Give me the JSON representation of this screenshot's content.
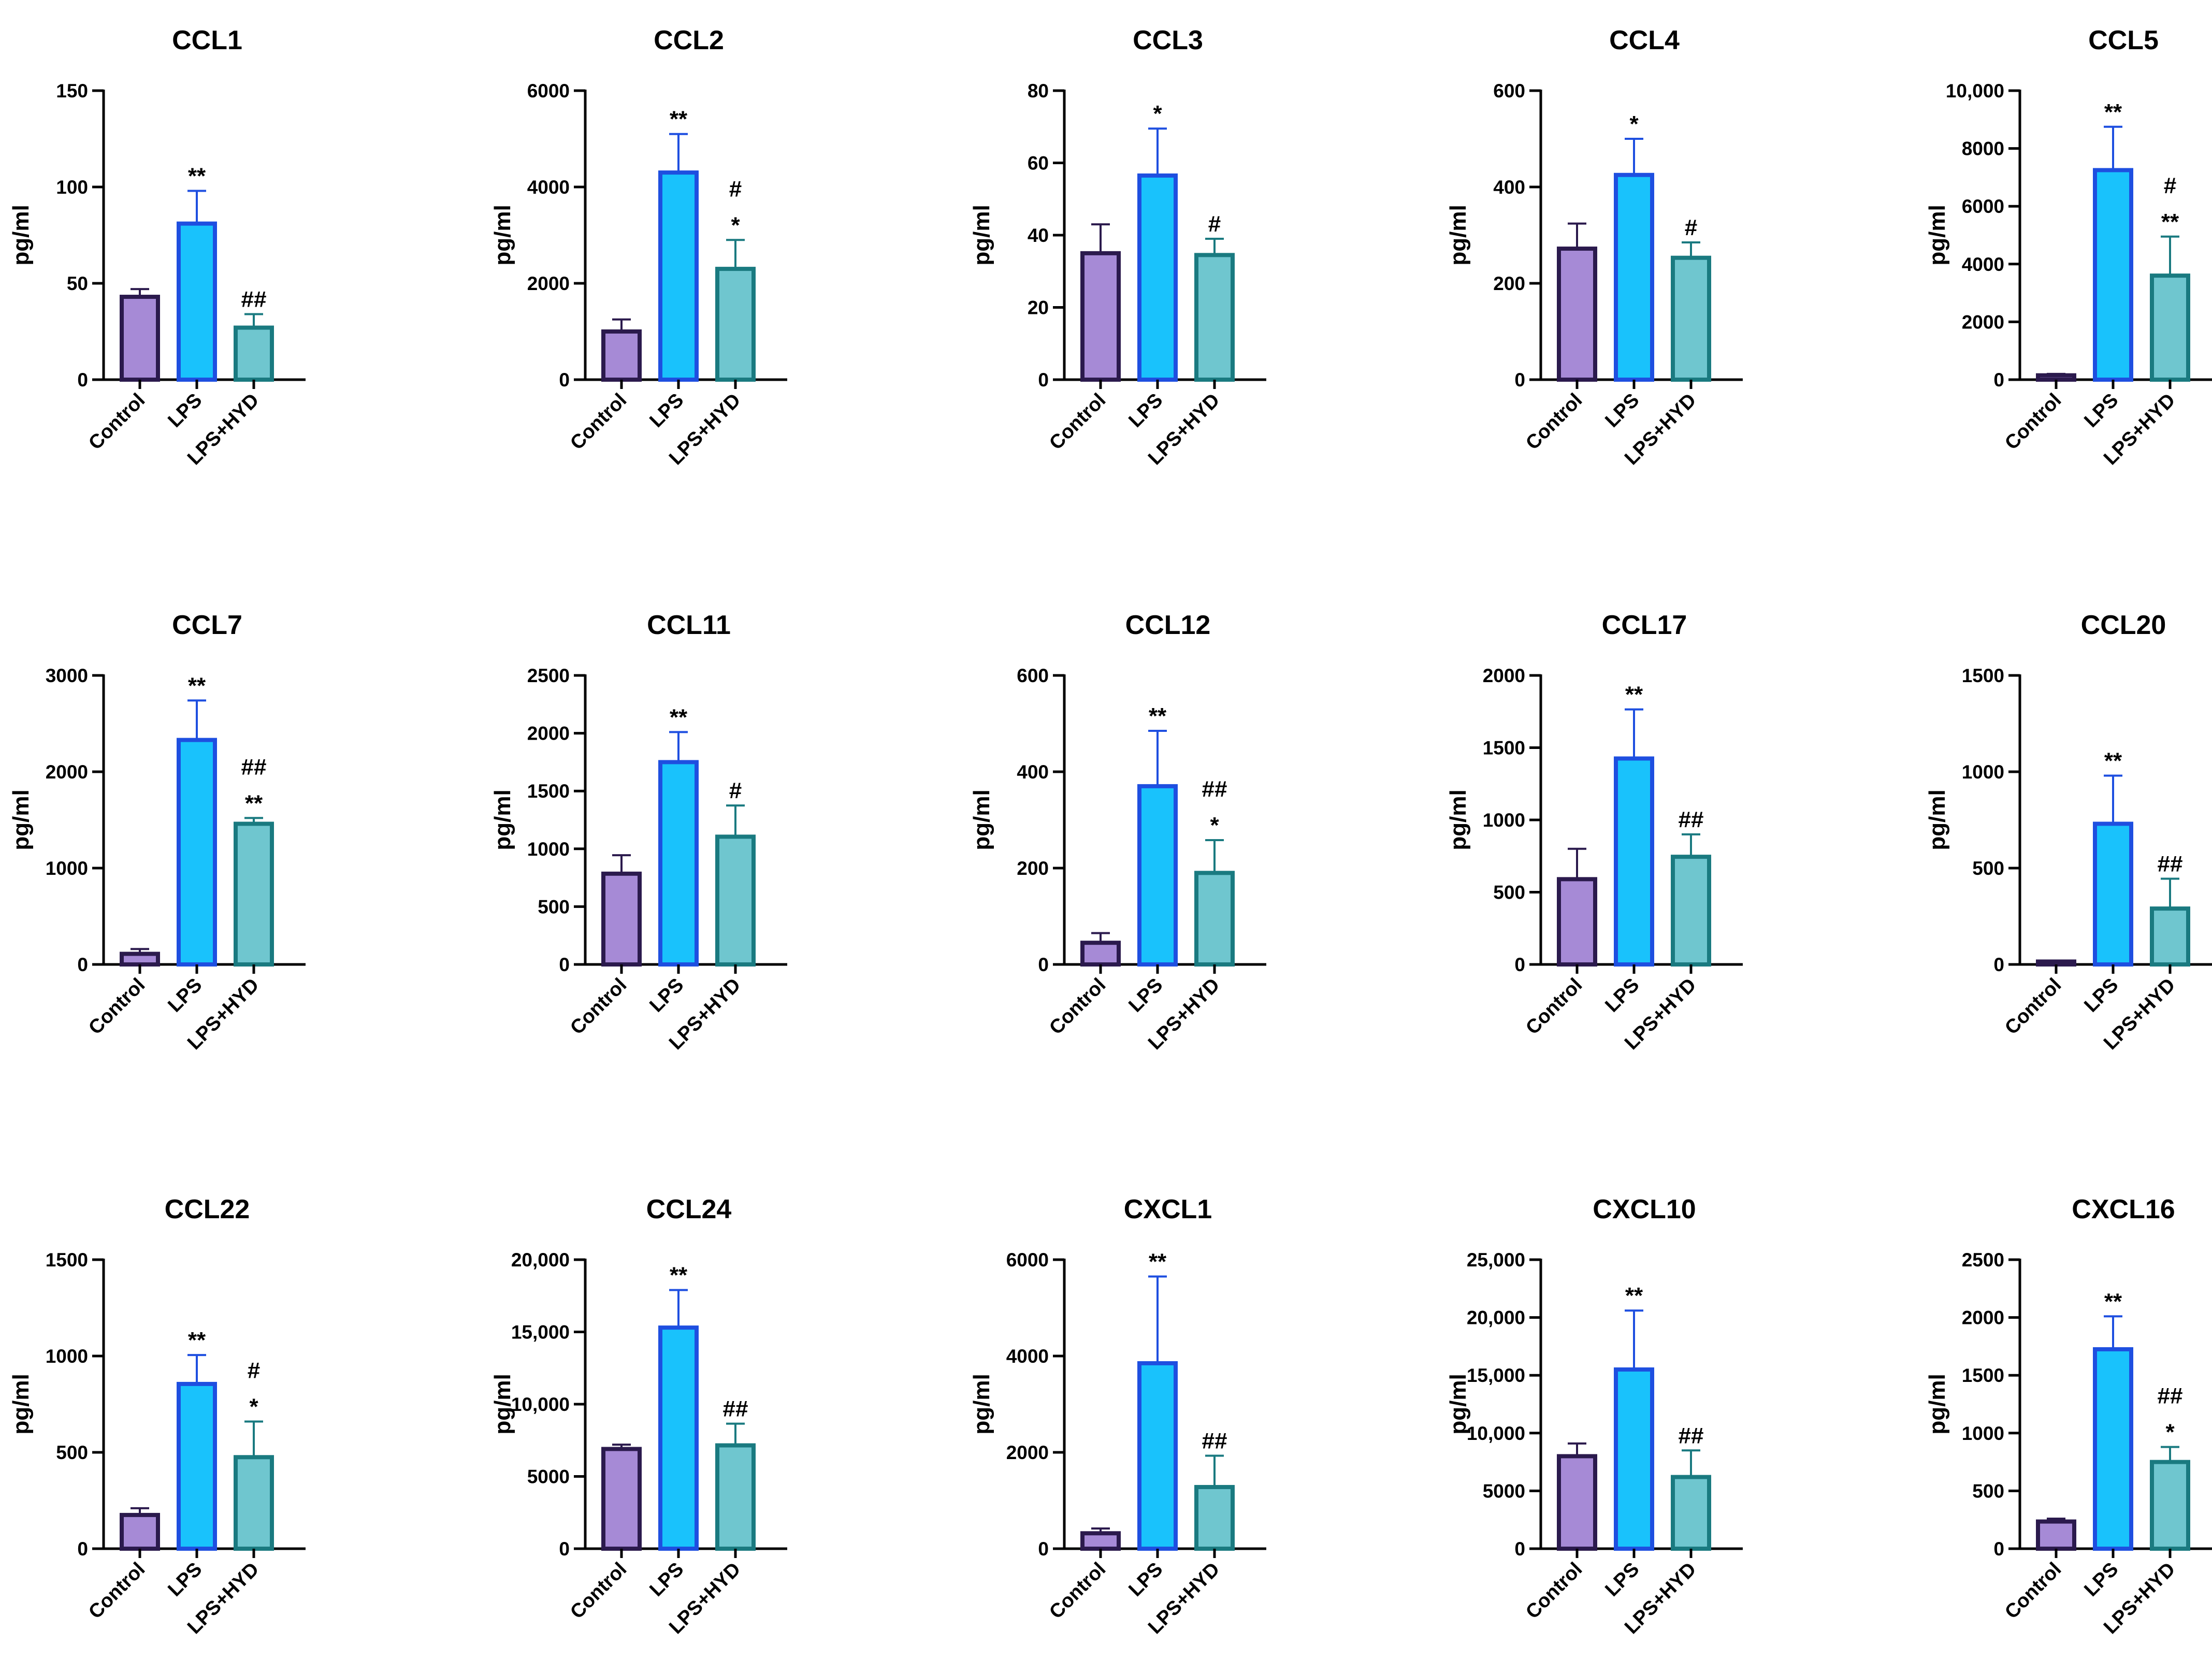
{
  "colors": {
    "Control": {
      "fill": "#a68ad6",
      "stroke": "#2b1a4d",
      "err": "#2b1a4d"
    },
    "LPS": {
      "fill": "#19c2fc",
      "stroke": "#1e4fe0",
      "err": "#1e4fe0"
    },
    "LPS+HYD": {
      "fill": "#6fc6cf",
      "stroke": "#1a7a80",
      "err": "#1a7a80"
    }
  },
  "chart_data": [
    {
      "type": "bar",
      "title": "CCL1",
      "ylabel": "pg/ml",
      "categories": [
        "Control",
        "LPS",
        "LPS+HYD"
      ],
      "values": [
        43,
        81,
        27
      ],
      "errors": [
        4,
        17,
        7
      ],
      "ylim": [
        0,
        150
      ],
      "yticks": [
        0,
        50,
        100,
        150
      ],
      "ytick_labels": [
        "0",
        "50",
        "100",
        "150"
      ],
      "annotations": [
        [],
        [
          "**"
        ],
        [
          "##"
        ]
      ]
    },
    {
      "type": "bar",
      "title": "CCL2",
      "ylabel": "pg/ml",
      "categories": [
        "Control",
        "LPS",
        "LPS+HYD"
      ],
      "values": [
        1000,
        4300,
        2300
      ],
      "errors": [
        250,
        800,
        600
      ],
      "ylim": [
        0,
        6000
      ],
      "yticks": [
        0,
        2000,
        4000,
        6000
      ],
      "ytick_labels": [
        "0",
        "2000",
        "4000",
        "6000"
      ],
      "annotations": [
        [],
        [
          "**"
        ],
        [
          "#",
          "*"
        ]
      ]
    },
    {
      "type": "bar",
      "title": "CCL3",
      "ylabel": "pg/ml",
      "categories": [
        "Control",
        "LPS",
        "LPS+HYD"
      ],
      "values": [
        35,
        56.5,
        34.5
      ],
      "errors": [
        8,
        13,
        4.5
      ],
      "ylim": [
        0,
        80
      ],
      "yticks": [
        0,
        20,
        40,
        60,
        80
      ],
      "ytick_labels": [
        "0",
        "20",
        "40",
        "60",
        "80"
      ],
      "annotations": [
        [],
        [
          "*"
        ],
        [
          "#"
        ]
      ]
    },
    {
      "type": "bar",
      "title": "CCL4",
      "ylabel": "pg/ml",
      "categories": [
        "Control",
        "LPS",
        "LPS+HYD"
      ],
      "values": [
        272,
        425,
        253
      ],
      "errors": [
        52,
        75,
        32
      ],
      "ylim": [
        0,
        600
      ],
      "yticks": [
        0,
        200,
        400,
        600
      ],
      "ytick_labels": [
        "0",
        "200",
        "400",
        "600"
      ],
      "annotations": [
        [],
        [
          "*"
        ],
        [
          "#"
        ]
      ]
    },
    {
      "type": "bar",
      "title": "CCL5",
      "ylabel": "pg/ml",
      "categories": [
        "Control",
        "LPS",
        "LPS+HYD"
      ],
      "values": [
        150,
        7250,
        3600
      ],
      "errors": [
        50,
        1500,
        1350
      ],
      "ylim": [
        0,
        10000
      ],
      "yticks": [
        0,
        2000,
        4000,
        6000,
        8000,
        10000
      ],
      "ytick_labels": [
        "0",
        "2000",
        "4000",
        "6000",
        "8000",
        "10,000"
      ],
      "annotations": [
        [],
        [
          "**"
        ],
        [
          "#",
          "**"
        ]
      ]
    },
    {
      "type": "bar",
      "title": "CCL7",
      "ylabel": "pg/ml",
      "categories": [
        "Control",
        "LPS",
        "LPS+HYD"
      ],
      "values": [
        110,
        2330,
        1460
      ],
      "errors": [
        50,
        410,
        60
      ],
      "ylim": [
        0,
        3000
      ],
      "yticks": [
        0,
        1000,
        2000,
        3000
      ],
      "ytick_labels": [
        "0",
        "1000",
        "2000",
        "3000"
      ],
      "annotations": [
        [],
        [
          "**"
        ],
        [
          "##",
          "**"
        ]
      ]
    },
    {
      "type": "bar",
      "title": "CCL11",
      "ylabel": "pg/ml",
      "categories": [
        "Control",
        "LPS",
        "LPS+HYD"
      ],
      "values": [
        785,
        1750,
        1105
      ],
      "errors": [
        160,
        260,
        270
      ],
      "ylim": [
        0,
        2500
      ],
      "yticks": [
        0,
        500,
        1000,
        1500,
        2000,
        2500
      ],
      "ytick_labels": [
        "0",
        "500",
        "1000",
        "1500",
        "2000",
        "2500"
      ],
      "annotations": [
        [],
        [
          "**"
        ],
        [
          "#"
        ]
      ]
    },
    {
      "type": "bar",
      "title": "CCL12",
      "ylabel": "pg/ml",
      "categories": [
        "Control",
        "LPS",
        "LPS+HYD"
      ],
      "values": [
        45,
        370,
        190
      ],
      "errors": [
        20,
        115,
        68
      ],
      "ylim": [
        0,
        600
      ],
      "yticks": [
        0,
        200,
        400,
        600
      ],
      "ytick_labels": [
        "0",
        "200",
        "400",
        "600"
      ],
      "annotations": [
        [],
        [
          "**"
        ],
        [
          "##",
          "*"
        ]
      ]
    },
    {
      "type": "bar",
      "title": "CCL17",
      "ylabel": "pg/ml",
      "categories": [
        "Control",
        "LPS",
        "LPS+HYD"
      ],
      "values": [
        590,
        1425,
        745
      ],
      "errors": [
        210,
        340,
        155
      ],
      "ylim": [
        0,
        2000
      ],
      "yticks": [
        0,
        500,
        1000,
        1500,
        2000
      ],
      "ytick_labels": [
        "0",
        "500",
        "1000",
        "1500",
        "2000"
      ],
      "annotations": [
        [],
        [
          "**"
        ],
        [
          "##"
        ]
      ]
    },
    {
      "type": "bar",
      "title": "CCL20",
      "ylabel": "pg/ml",
      "categories": [
        "Control",
        "LPS",
        "LPS+HYD"
      ],
      "values": [
        15,
        730,
        290
      ],
      "errors": [
        5,
        250,
        155
      ],
      "ylim": [
        0,
        1500
      ],
      "yticks": [
        0,
        500,
        1000,
        1500
      ],
      "ytick_labels": [
        "0",
        "500",
        "1000",
        "1500"
      ],
      "annotations": [
        [],
        [
          "**"
        ],
        [
          "##"
        ]
      ]
    },
    {
      "type": "bar",
      "title": "CCL22",
      "ylabel": "pg/ml",
      "categories": [
        "Control",
        "LPS",
        "LPS+HYD"
      ],
      "values": [
        175,
        855,
        475
      ],
      "errors": [
        35,
        150,
        185
      ],
      "ylim": [
        0,
        1500
      ],
      "yticks": [
        0,
        500,
        1000,
        1500
      ],
      "ytick_labels": [
        "0",
        "500",
        "1000",
        "1500"
      ],
      "annotations": [
        [],
        [
          "**"
        ],
        [
          "#",
          "*"
        ]
      ]
    },
    {
      "type": "bar",
      "title": "CCL24",
      "ylabel": "pg/ml",
      "categories": [
        "Control",
        "LPS",
        "LPS+HYD"
      ],
      "values": [
        6900,
        15300,
        7150
      ],
      "errors": [
        300,
        2600,
        1500
      ],
      "ylim": [
        0,
        20000
      ],
      "yticks": [
        0,
        5000,
        10000,
        15000,
        20000
      ],
      "ytick_labels": [
        "0",
        "5000",
        "10,000",
        "15,000",
        "20,000"
      ],
      "annotations": [
        [],
        [
          "**"
        ],
        [
          "##"
        ]
      ]
    },
    {
      "type": "bar",
      "title": "CXCL1",
      "ylabel": "pg/ml",
      "categories": [
        "Control",
        "LPS",
        "LPS+HYD"
      ],
      "values": [
        320,
        3850,
        1280
      ],
      "errors": [
        100,
        1800,
        650
      ],
      "ylim": [
        0,
        6000
      ],
      "yticks": [
        0,
        2000,
        4000,
        6000
      ],
      "ytick_labels": [
        "0",
        "2000",
        "4000",
        "6000"
      ],
      "annotations": [
        [],
        [
          "**"
        ],
        [
          "##"
        ]
      ]
    },
    {
      "type": "bar",
      "title": "CXCL10",
      "ylabel": "pg/ml",
      "categories": [
        "Control",
        "LPS",
        "LPS+HYD"
      ],
      "values": [
        8000,
        15500,
        6200
      ],
      "errors": [
        1100,
        5100,
        2300
      ],
      "ylim": [
        0,
        25000
      ],
      "yticks": [
        0,
        5000,
        10000,
        15000,
        20000,
        25000
      ],
      "ytick_labels": [
        "0",
        "5000",
        "10,000",
        "15,000",
        "20,000",
        "25,000"
      ],
      "annotations": [
        [],
        [
          "**"
        ],
        [
          "##"
        ]
      ]
    },
    {
      "type": "bar",
      "title": "CXCL16",
      "ylabel": "pg/ml",
      "categories": [
        "Control",
        "LPS",
        "LPS+HYD"
      ],
      "values": [
        235,
        1725,
        750
      ],
      "errors": [
        25,
        285,
        130
      ],
      "ylim": [
        0,
        2500
      ],
      "yticks": [
        0,
        500,
        1000,
        1500,
        2000,
        2500
      ],
      "ytick_labels": [
        "0",
        "500",
        "1000",
        "1500",
        "2000",
        "2500"
      ],
      "annotations": [
        [],
        [
          "**"
        ],
        [
          "##",
          "*"
        ]
      ]
    }
  ]
}
